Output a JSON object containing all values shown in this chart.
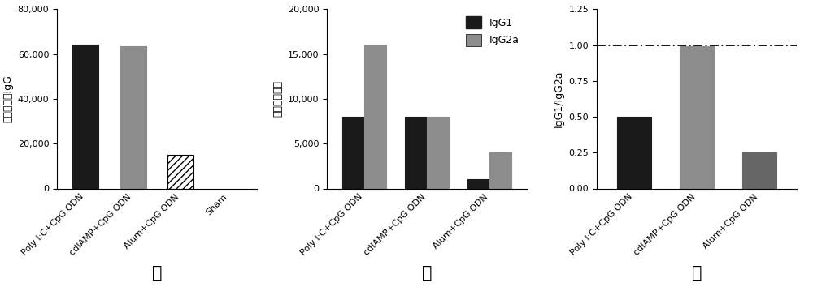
{
  "left": {
    "categories": [
      "Poly I:C+CpG ODN",
      "cdIAMP+CpG ODN",
      "Alum+CpG ODN",
      "Sham"
    ],
    "values": [
      64000,
      63500,
      15000,
      0
    ],
    "bar_types": [
      "solid_black",
      "solid_gray",
      "hatch_black",
      "none"
    ],
    "ylabel": "总抗体满度IgG",
    "ylim": [
      0,
      80000
    ],
    "yticks": [
      0,
      20000,
      40000,
      60000,
      80000
    ],
    "subtitle": "左"
  },
  "middle": {
    "categories": [
      "Poly I:C+CpG ODN",
      "cdIAMP+CpG ODN",
      "Alum+CpG ODN"
    ],
    "IgG1_values": [
      8000,
      8000,
      1000
    ],
    "IgG2a_values": [
      16000,
      8000,
      4000
    ],
    "IgG1_color": "#1a1a1a",
    "IgG2a_color": "#8c8c8c",
    "ylabel": "分裂抗体满度",
    "ylim": [
      0,
      20000
    ],
    "yticks": [
      0,
      5000,
      10000,
      15000,
      20000
    ],
    "subtitle": "中"
  },
  "right": {
    "categories": [
      "Poly I:C+CpG ODN",
      "cdIAMP+CpG ODN",
      "Alum+CpG ODN"
    ],
    "values": [
      0.5,
      0.99,
      0.25
    ],
    "bar_colors": [
      "#1a1a1a",
      "#8c8c8c",
      "#666666"
    ],
    "ylabel": "IgG1/IgG2a",
    "ylim": [
      0,
      1.25
    ],
    "yticks": [
      0.0,
      0.25,
      0.5,
      0.75,
      1.0,
      1.25
    ],
    "hline_y": 1.0,
    "subtitle": "右"
  },
  "legend_IgG1": "IgG1",
  "legend_IgG2a": "IgG2a",
  "bg_color": "#ffffff",
  "tick_fontsize": 8,
  "label_fontsize": 9,
  "subtitle_fontsize": 15
}
